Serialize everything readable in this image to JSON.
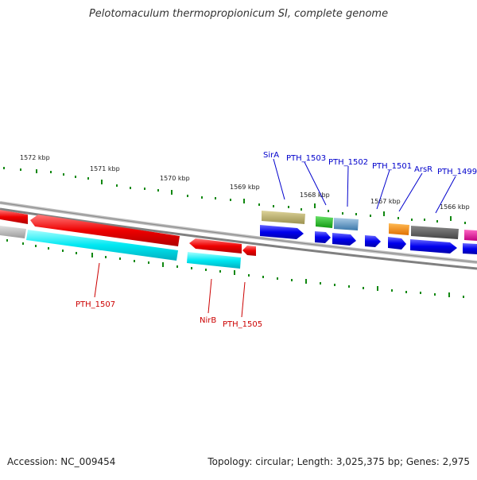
{
  "title": "Pelotomaculum thermopropionicum SI, complete genome",
  "footer": {
    "accession_label": "Accession:",
    "accession": "NC_009454",
    "topology_label": "Topology:",
    "topology": "circular",
    "length_label": "Length:",
    "length": "3,025,375 bp",
    "genes_label": "Genes:",
    "genes": "2,975"
  },
  "scale_labels": [
    "1572 kbp",
    "1571 kbp",
    "1570 kbp",
    "1569 kbp",
    "1568 kbp",
    "1567 kbp",
    "1566 kbp"
  ],
  "gene_labels_top": [
    "SirA",
    "PTH_1503",
    "PTH_1502",
    "PTH_1501",
    "ArsR",
    "PTH_1499"
  ],
  "gene_labels_bottom": [
    "PTH_1507",
    "NirB",
    "PTH_1505"
  ],
  "colors": {
    "red": "#ee0000",
    "cyan": "#00e5f0",
    "blue": "#0000ee",
    "gray": "#b0b0b0",
    "darkgray": "#555555",
    "olive": "#b8ad62",
    "green": "#22bb22",
    "steelblue": "#4a8fc0",
    "orange": "#ff8800",
    "magenta": "#ee0099",
    "tick": "#118811",
    "label_blue": "#0000cc",
    "label_red": "#cc0000"
  }
}
